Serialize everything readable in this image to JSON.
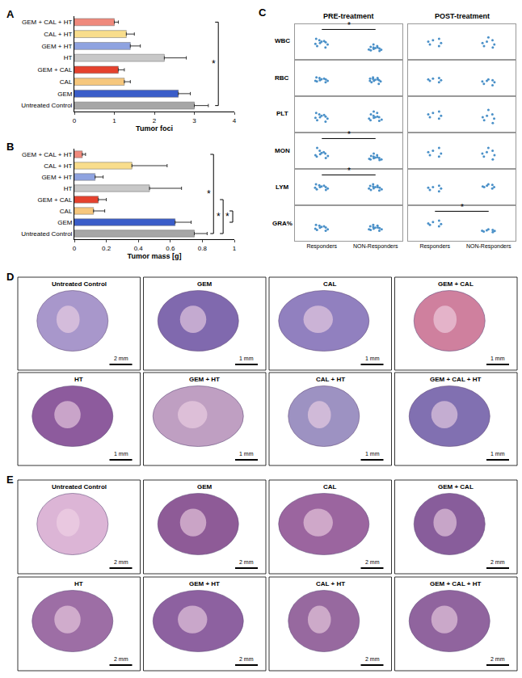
{
  "chart_data": [
    {
      "label": "A",
      "type": "bar",
      "orientation": "horizontal",
      "categories": [
        "Untreated Control",
        "GEM",
        "CAL",
        "GEM + CAL",
        "HT",
        "GEM + HT",
        "CAL + HT",
        "GEM + CAL + HT"
      ],
      "values": [
        3.0,
        2.6,
        1.25,
        1.1,
        2.25,
        1.4,
        1.3,
        1.0
      ],
      "errors": [
        0.35,
        0.3,
        0.15,
        0.15,
        0.55,
        0.25,
        0.2,
        0.1
      ],
      "colors": [
        "#a6a6a6",
        "#3a5dc9",
        "#f6c77d",
        "#e5412d",
        "#c8c8c8",
        "#8fa3e0",
        "#f8dd8c",
        "#ef8a7d"
      ],
      "xlabel": "Tumor foci",
      "xlim": [
        0,
        4
      ],
      "xticks": [
        0,
        1,
        2,
        3,
        4
      ],
      "grid": false,
      "annotations": [
        {
          "text": "*",
          "from": "GEM + CAL + HT",
          "to": "Untreated Control"
        }
      ]
    },
    {
      "label": "B",
      "type": "bar",
      "orientation": "horizontal",
      "categories": [
        "Untreated Control",
        "GEM",
        "CAL",
        "GEM + CAL",
        "HT",
        "GEM + HT",
        "CAL + HT",
        "GEM + CAL + HT"
      ],
      "values": [
        0.75,
        0.63,
        0.12,
        0.15,
        0.47,
        0.13,
        0.36,
        0.05
      ],
      "errors": [
        0.08,
        0.1,
        0.07,
        0.05,
        0.2,
        0.05,
        0.22,
        0.02
      ],
      "colors": [
        "#a6a6a6",
        "#3a5dc9",
        "#f6c77d",
        "#e5412d",
        "#c8c8c8",
        "#8fa3e0",
        "#f8dd8c",
        "#ef8a7d"
      ],
      "xlabel": "Tumor mass [g]",
      "xlim": [
        0,
        1
      ],
      "xticks": [
        0,
        0.2,
        0.4,
        0.6,
        0.8,
        1
      ],
      "grid": false,
      "annotations": [
        {
          "text": "*",
          "from": "GEM + CAL + HT",
          "to": "Untreated Control"
        },
        {
          "text": "*",
          "from": "GEM + CAL",
          "to": "Untreated Control"
        },
        {
          "text": "*",
          "from": "CAL",
          "to": "GEM"
        }
      ]
    },
    {
      "label": "C",
      "type": "strip",
      "columns": [
        "PRE-treatment",
        "POST-treatment"
      ],
      "rows": [
        "WBC",
        "RBC",
        "PLT",
        "MON",
        "LYM",
        "GRA%"
      ],
      "categories": [
        "Responders",
        "NON-Responders"
      ],
      "ylim": [
        0,
        1.2
      ],
      "tick_labels": "x",
      "color": "#4a90c8",
      "grid": false,
      "cells": [
        {
          "row": "WBC",
          "column": "PRE-treatment",
          "values": [
            [
              0.45,
              0.55,
              0.6,
              0.5,
              0.65,
              0.7,
              0.4,
              0.58,
              0.62,
              0.52
            ],
            [
              0.3,
              0.35,
              0.4,
              0.32,
              0.45,
              0.38,
              0.28,
              0.42,
              0.36,
              0.5,
              0.33,
              0.4
            ]
          ]
        },
        {
          "row": "WBC",
          "column": "POST-treatment",
          "values": [
            [
              0.5,
              0.6,
              0.7,
              0.55,
              0.45,
              0.65
            ],
            [
              0.4,
              0.55,
              0.75,
              0.6,
              0.5,
              0.65,
              0.45
            ]
          ]
        },
        {
          "row": "RBC",
          "column": "PRE-treatment",
          "values": [
            [
              0.5,
              0.55,
              0.6,
              0.52,
              0.48,
              0.58,
              0.62,
              0.45,
              0.5,
              0.56
            ],
            [
              0.5,
              0.6,
              0.55,
              0.45,
              0.52,
              0.58,
              0.48,
              0.62,
              0.5,
              0.54,
              0.4,
              0.57
            ]
          ]
        },
        {
          "row": "RBC",
          "column": "POST-treatment",
          "values": [
            [
              0.55,
              0.6,
              0.5,
              0.58,
              0.52,
              0.45
            ],
            [
              0.4,
              0.5,
              0.45,
              0.55,
              0.35,
              0.48,
              0.52
            ]
          ]
        },
        {
          "row": "PLT",
          "column": "PRE-treatment",
          "values": [
            [
              0.4,
              0.5,
              0.55,
              0.6,
              0.45,
              0.65,
              0.35,
              0.52,
              0.48,
              0.58
            ],
            [
              0.45,
              0.5,
              0.55,
              0.6,
              0.4,
              0.65,
              0.5,
              0.48,
              0.52,
              0.7,
              0.42,
              0.38
            ]
          ]
        },
        {
          "row": "PLT",
          "column": "POST-treatment",
          "values": [
            [
              0.5,
              0.6,
              0.65,
              0.45,
              0.7,
              0.55
            ],
            [
              0.3,
              0.45,
              0.6,
              0.75,
              0.5,
              0.4,
              0.55
            ]
          ]
        },
        {
          "row": "MON",
          "column": "PRE-treatment",
          "values": [
            [
              0.4,
              0.45,
              0.5,
              0.55,
              0.35,
              0.6,
              0.48,
              0.42,
              0.7,
              0.52
            ],
            [
              0.3,
              0.35,
              0.4,
              0.32,
              0.38,
              0.28,
              0.45,
              0.36,
              0.42,
              0.3,
              0.34,
              0.5
            ]
          ]
        },
        {
          "row": "MON",
          "column": "POST-treatment",
          "values": [
            [
              0.4,
              0.5,
              0.6,
              0.45,
              0.7,
              0.55
            ],
            [
              0.3,
              0.5,
              0.6,
              0.7,
              0.45,
              0.55,
              0.4
            ]
          ]
        },
        {
          "row": "LYM",
          "column": "PRE-treatment",
          "values": [
            [
              0.55,
              0.6,
              0.65,
              0.5,
              0.62,
              0.7,
              0.58,
              0.52,
              0.66,
              0.6
            ],
            [
              0.5,
              0.55,
              0.6,
              0.65,
              0.58,
              0.7,
              0.62,
              0.52,
              0.48,
              0.6,
              0.56,
              0.64
            ]
          ]
        },
        {
          "row": "LYM",
          "column": "POST-treatment",
          "values": [
            [
              0.5,
              0.55,
              0.6,
              0.45,
              0.65,
              0.58
            ],
            [
              0.6,
              0.65,
              0.7,
              0.62,
              0.68,
              0.55,
              0.6
            ]
          ]
        },
        {
          "row": "GRA%",
          "column": "PRE-treatment",
          "values": [
            [
              0.4,
              0.45,
              0.5,
              0.38,
              0.55,
              0.42,
              0.48,
              0.35,
              0.52,
              0.46
            ],
            [
              0.4,
              0.45,
              0.5,
              0.42,
              0.38,
              0.48,
              0.52,
              0.35,
              0.46,
              0.44,
              0.55,
              0.4
            ]
          ]
        },
        {
          "row": "GRA%",
          "column": "POST-treatment",
          "values": [
            [
              0.55,
              0.6,
              0.65,
              0.5,
              0.7,
              0.58
            ],
            [
              0.35,
              0.3,
              0.38,
              0.32,
              0.4,
              0.34,
              0.36
            ]
          ]
        }
      ],
      "annotations": [
        {
          "text": "*",
          "row": "WBC",
          "column": "PRE-treatment"
        },
        {
          "text": "*",
          "row": "MON",
          "column": "PRE-treatment"
        },
        {
          "text": "*",
          "row": "LYM",
          "column": "PRE-treatment"
        },
        {
          "text": "*",
          "row": "GRA%",
          "column": "POST-treatment"
        }
      ]
    }
  ],
  "figure_panels": [
    {
      "label": "D",
      "images": [
        {
          "title": "Untreated Control",
          "scale": "2 mm"
        },
        {
          "title": "GEM",
          "scale": "1 mm"
        },
        {
          "title": "CAL",
          "scale": "1 mm"
        },
        {
          "title": "GEM + CAL",
          "scale": "1 mm"
        },
        {
          "title": "HT",
          "scale": "1 mm"
        },
        {
          "title": "GEM + HT",
          "scale": "1 mm"
        },
        {
          "title": "CAL + HT",
          "scale": "1 mm"
        },
        {
          "title": "GEM + CAL + HT",
          "scale": "1 mm"
        }
      ]
    },
    {
      "label": "E",
      "images": [
        {
          "title": "Untreated Control",
          "scale": "2 mm"
        },
        {
          "title": "GEM",
          "scale": "2 mm"
        },
        {
          "title": "CAL",
          "scale": "2 mm"
        },
        {
          "title": "GEM + CAL",
          "scale": "2 mm"
        },
        {
          "title": "HT",
          "scale": "2 mm"
        },
        {
          "title": "GEM + HT",
          "scale": "2 mm"
        },
        {
          "title": "CAL + HT",
          "scale": "2 mm"
        },
        {
          "title": "GEM + CAL + HT",
          "scale": "2 mm"
        }
      ]
    }
  ]
}
